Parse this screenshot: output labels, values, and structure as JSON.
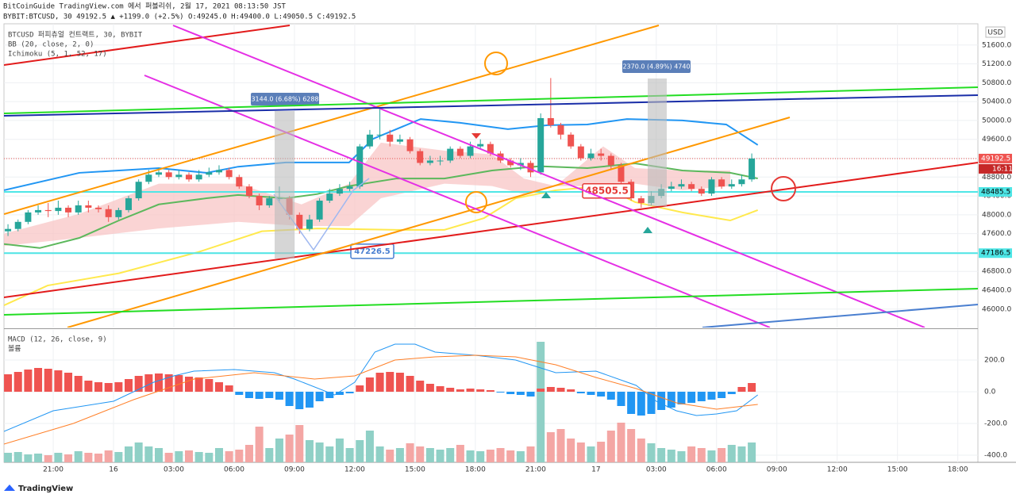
{
  "header": {
    "line1": "BitCoinGuide TradingView.com 에서 퍼블리쉬, 2월 17, 2021 08:13:50 JST",
    "symbol_line": "BYBIT:BTCUSD, 30 49192.5 ▲ +1199.0 (+2.5%) O:49245.0 H:49400.0 L:49050.5 C:49192.5"
  },
  "footer": {
    "brand": "TradingView"
  },
  "chart_data": [
    {
      "type": "candlestick",
      "title": "BTCUSD 퍼피츄얼 컨트랙트, 30, BYBIT",
      "indicators": [
        "BB (20, close, 2, 0)",
        "Ichimoku (5, 1, 52, 17)"
      ],
      "axis_unit": "USD",
      "up_color": "#26a69a",
      "down_color": "#ef5350",
      "x": [
        18.75,
        19.25,
        19.75,
        20.25,
        20.75,
        21.25,
        21.75,
        22.25,
        22.75,
        23.25,
        23.75,
        24.25,
        24.75,
        25.25,
        25.75,
        26.25,
        26.75,
        27.25,
        27.75,
        28.25,
        28.75,
        29.25,
        29.75,
        30.25,
        30.75,
        31.25,
        31.75,
        32.25,
        32.75,
        33.25,
        33.75,
        34.25,
        34.75,
        35.25,
        35.75,
        36.25,
        36.75,
        37.25,
        37.75,
        38.25,
        38.75,
        39.25,
        39.75,
        40.25,
        40.75,
        41.25,
        41.75,
        42.25,
        42.75,
        43.25,
        43.75,
        44.25,
        44.75,
        45.25,
        45.75,
        46.25,
        46.75,
        47.25,
        47.75,
        48.25,
        48.75,
        49.25,
        49.75,
        50.25,
        50.75,
        51.25,
        51.75,
        52.25,
        52.75,
        53.25,
        53.75,
        54.25,
        54.75,
        55.25,
        55.75
      ],
      "open": [
        47650,
        47700,
        47850,
        48050,
        48100,
        48080,
        48150,
        48050,
        48200,
        48150,
        48120,
        47950,
        48100,
        48350,
        48700,
        48850,
        48900,
        48800,
        48850,
        48750,
        48850,
        48900,
        48950,
        48800,
        48600,
        48400,
        48200,
        48350,
        48350,
        48000,
        47700,
        47900,
        48300,
        48450,
        48550,
        48600,
        49450,
        49700,
        49700,
        49550,
        49600,
        49350,
        49100,
        49150,
        49150,
        49400,
        49250,
        49450,
        49500,
        49300,
        49150,
        49050,
        49100,
        48900,
        50050,
        49900,
        49700,
        49450,
        49200,
        49300,
        49250,
        49050,
        48700,
        48350,
        48250,
        48400,
        48550,
        48600,
        48650,
        48550,
        48450,
        48750,
        48600,
        48650,
        48750
      ],
      "high": [
        47800,
        47900,
        48100,
        48200,
        48250,
        48300,
        48200,
        48300,
        48300,
        48200,
        48200,
        48150,
        48400,
        48750,
        48950,
        49000,
        48950,
        48950,
        48900,
        48950,
        49000,
        49050,
        49000,
        48850,
        48650,
        48450,
        48400,
        48600,
        48400,
        48050,
        48000,
        48350,
        48550,
        48650,
        48700,
        49500,
        49800,
        50250,
        49800,
        49700,
        49650,
        49400,
        49250,
        49250,
        49450,
        49450,
        49550,
        49600,
        49550,
        49350,
        49200,
        49200,
        49150,
        50150,
        50900,
        49950,
        49750,
        49500,
        49400,
        49400,
        49300,
        49100,
        48750,
        48400,
        48500,
        48650,
        48700,
        48750,
        48700,
        48600,
        48800,
        48800,
        48750,
        48850,
        49300
      ],
      "low": [
        47550,
        47650,
        47800,
        48000,
        47950,
        48000,
        47950,
        48000,
        48050,
        48050,
        47850,
        47900,
        48050,
        48300,
        48650,
        48800,
        48750,
        48750,
        48700,
        48700,
        48800,
        48850,
        48750,
        48550,
        48350,
        48100,
        48150,
        48250,
        47900,
        47600,
        47650,
        47850,
        48250,
        48400,
        48500,
        48550,
        49400,
        49600,
        49450,
        49500,
        49300,
        49050,
        49050,
        49050,
        49100,
        49200,
        49200,
        49400,
        49250,
        49100,
        49000,
        48950,
        48800,
        48850,
        49850,
        49600,
        49400,
        49150,
        49150,
        49150,
        48950,
        48650,
        48300,
        48150,
        48200,
        48350,
        48500,
        48550,
        48500,
        48400,
        48400,
        48550,
        48550,
        48600,
        48700
      ],
      "close": [
        47700,
        47850,
        48050,
        48100,
        48080,
        48150,
        48050,
        48200,
        48150,
        48120,
        47950,
        48100,
        48350,
        48700,
        48850,
        48900,
        48800,
        48850,
        48750,
        48850,
        48900,
        48950,
        48800,
        48600,
        48400,
        48200,
        48350,
        48350,
        48000,
        47700,
        47900,
        48300,
        48450,
        48550,
        48600,
        49450,
        49700,
        49700,
        49550,
        49600,
        49350,
        49100,
        49150,
        49150,
        49400,
        49250,
        49450,
        49500,
        49300,
        49150,
        49050,
        49100,
        48900,
        50050,
        49900,
        49700,
        49450,
        49200,
        49300,
        49250,
        49050,
        48700,
        48350,
        48250,
        48400,
        48550,
        48600,
        48650,
        48550,
        48450,
        48750,
        48600,
        48650,
        48750,
        49192.5
      ],
      "xlim": [
        18.55,
        67
      ],
      "xticks": [
        {
          "value": 21,
          "label": "21:00"
        },
        {
          "value": 24,
          "label": "16"
        },
        {
          "value": 27,
          "label": "03:00"
        },
        {
          "value": 30,
          "label": "06:00"
        },
        {
          "value": 33,
          "label": "09:00"
        },
        {
          "value": 36,
          "label": "12:00"
        },
        {
          "value": 39,
          "label": "15:00"
        },
        {
          "value": 42,
          "label": "18:00"
        },
        {
          "value": 45,
          "label": "21:00"
        },
        {
          "value": 48,
          "label": "17"
        },
        {
          "value": 51,
          "label": "03:00"
        },
        {
          "value": 54,
          "label": "06:00"
        },
        {
          "value": 57,
          "label": "09:00"
        },
        {
          "value": 60,
          "label": "12:00"
        },
        {
          "value": 63,
          "label": "15:00"
        },
        {
          "value": 66,
          "label": "18:00"
        }
      ],
      "ylim": [
        45610,
        52050
      ],
      "yticks": [
        {
          "value": 46000,
          "label": "46000.0"
        },
        {
          "value": 46400,
          "label": "46400.0"
        },
        {
          "value": 46800,
          "label": "46800.0"
        },
        {
          "value": 47200,
          "label": "47200.0"
        },
        {
          "value": 47600,
          "label": "47600.0"
        },
        {
          "value": 48000,
          "label": "48000.0"
        },
        {
          "value": 48400,
          "label": "48400.0"
        },
        {
          "value": 48800,
          "label": "48800.0"
        },
        {
          "value": 49200,
          "label": "49200.0"
        },
        {
          "value": 49600,
          "label": "49600.0"
        },
        {
          "value": 50000,
          "label": "50000.0"
        },
        {
          "value": 50400,
          "label": "50400.0"
        },
        {
          "value": 50800,
          "label": "50800.0"
        },
        {
          "value": 51200,
          "label": "51200.0"
        },
        {
          "value": 51600,
          "label": "51600.0"
        }
      ],
      "cloud": {
        "color": "#f8c5c5",
        "x": [
          18.55,
          22.3,
          26.25,
          30.2,
          33.35,
          35.72,
          37.3,
          40.46,
          42.83,
          44.41,
          45.99,
          48.36,
          49.94,
          52.3,
          54.68
        ],
        "upper": [
          47600,
          48020,
          48660,
          48660,
          48220,
          48660,
          49530,
          49360,
          49280,
          48770,
          48610,
          49450,
          48990,
          48940,
          48940
        ],
        "lower": [
          47340,
          47510,
          47710,
          47850,
          47760,
          47760,
          48350,
          48660,
          48610,
          48440,
          48610,
          48610,
          48660,
          48520,
          48610
        ]
      },
      "lines": [
        {
          "color": "#2196f3",
          "x": [
            18.55,
            22.3,
            26.25,
            28.62,
            30.2,
            32.57,
            35.72,
            36.91,
            39.28,
            41.25,
            43.62,
            45.59,
            47.57,
            49.54,
            52.3,
            54.48,
            56.05
          ],
          "values": [
            48520,
            48890,
            48990,
            48890,
            49020,
            49110,
            49110,
            49610,
            50030,
            49950,
            49815,
            49900,
            49915,
            50030,
            50000,
            49915,
            49480
          ]
        },
        {
          "color": "#5cb85c",
          "x": [
            18.55,
            20.33,
            22.3,
            24.27,
            26.25,
            28.62,
            30.2,
            32.57,
            34.14,
            35.72,
            38.09,
            40.46,
            42.83,
            45.2,
            47.57,
            49.94,
            52.3,
            54.68,
            56.05
          ],
          "values": [
            47380,
            47295,
            47510,
            47880,
            48220,
            48350,
            48420,
            48350,
            48440,
            48610,
            48770,
            48770,
            48940,
            49030,
            48990,
            49090,
            48940,
            48890,
            48770
          ]
        },
        {
          "color": "#ffe94d",
          "x": [
            18.55,
            20.72,
            24.27,
            28.22,
            31.38,
            34.14,
            38.09,
            40.46,
            42.43,
            44.01,
            45.99,
            48.36,
            49.94,
            52.3,
            54.68,
            56.05
          ],
          "values": [
            46080,
            46500,
            46760,
            47210,
            47650,
            47710,
            47680,
            47680,
            47930,
            48350,
            48520,
            48610,
            48270,
            48050,
            47880,
            48100
          ]
        }
      ],
      "price_lines": [
        {
          "value": 49192.5,
          "color": "#ef5350"
        },
        {
          "value": 48485.5,
          "color": "#4ee6e6"
        },
        {
          "value": 47186.5,
          "color": "#4ee6e6"
        }
      ],
      "countdown": "16:11",
      "measures": [
        "3144.0 (6.68%) 6288",
        "2370.0 (4.89%) 4740"
      ],
      "callouts": [
        {
          "value": 47226.5,
          "color": "#4a7fd0"
        },
        {
          "value": 48505.5,
          "color": "#e53935"
        }
      ]
    },
    {
      "type": "macd",
      "title": "MACD (12, 26, close, 9)",
      "volume_title": "볼륨",
      "pos_color": "#ef5350",
      "neg_color": "#2196f3",
      "histogram": [
        110,
        125,
        140,
        150,
        145,
        135,
        120,
        100,
        70,
        60,
        55,
        60,
        80,
        100,
        110,
        115,
        110,
        105,
        95,
        90,
        80,
        60,
        40,
        -20,
        -40,
        -45,
        -40,
        -50,
        -90,
        -110,
        -100,
        -60,
        -40,
        -20,
        -10,
        40,
        90,
        120,
        125,
        120,
        100,
        70,
        50,
        35,
        25,
        15,
        20,
        15,
        10,
        -5,
        -15,
        -20,
        -30,
        20,
        30,
        25,
        15,
        -10,
        -20,
        -30,
        -50,
        -90,
        -140,
        -150,
        -140,
        -115,
        -100,
        -80,
        -70,
        -60,
        -50,
        -40,
        -15,
        30,
        55
      ],
      "volume": [
        12,
        13,
        10,
        11,
        9,
        12,
        10,
        14,
        12,
        11,
        15,
        13,
        20,
        25,
        20,
        18,
        12,
        14,
        15,
        13,
        12,
        18,
        14,
        16,
        22,
        45,
        18,
        30,
        35,
        47,
        28,
        25,
        20,
        30,
        18,
        28,
        40,
        20,
        16,
        18,
        24,
        20,
        18,
        16,
        18,
        22,
        15,
        14,
        16,
        18,
        15,
        14,
        20,
        152,
        38,
        42,
        30,
        25,
        20,
        26,
        40,
        50,
        42,
        30,
        24,
        18,
        16,
        14,
        20,
        18,
        15,
        18,
        22,
        20,
        25
      ],
      "vlim": [
        0,
        167
      ],
      "lines": [
        {
          "color": "#2196f3",
          "x": [
            18.55,
            21,
            24,
            26,
            27,
            28,
            30,
            32,
            33,
            35,
            36,
            37,
            38,
            39,
            40,
            42,
            44,
            46,
            48,
            50,
            51,
            52,
            53,
            54,
            55,
            56.05
          ],
          "values": [
            -250,
            -120,
            -60,
            60,
            100,
            130,
            140,
            120,
            80,
            -20,
            60,
            250,
            300,
            300,
            250,
            230,
            200,
            120,
            130,
            40,
            -60,
            -120,
            -150,
            -140,
            -120,
            -20
          ]
        },
        {
          "color": "#ff7f27",
          "x": [
            18.55,
            22,
            25,
            28,
            31,
            34,
            36,
            38,
            40,
            42,
            44,
            46,
            48,
            50,
            52,
            54,
            56.05
          ],
          "values": [
            -330,
            -200,
            -50,
            80,
            120,
            80,
            100,
            200,
            220,
            230,
            220,
            170,
            90,
            20,
            -70,
            -110,
            -80
          ]
        }
      ],
      "ylim": [
        -445,
        390
      ],
      "yticks": [
        {
          "value": 200,
          "label": "200.0"
        },
        {
          "value": 0,
          "label": "0.0"
        },
        {
          "value": -200,
          "label": "-200.0"
        },
        {
          "value": -400,
          "label": "-400.0"
        }
      ]
    }
  ]
}
